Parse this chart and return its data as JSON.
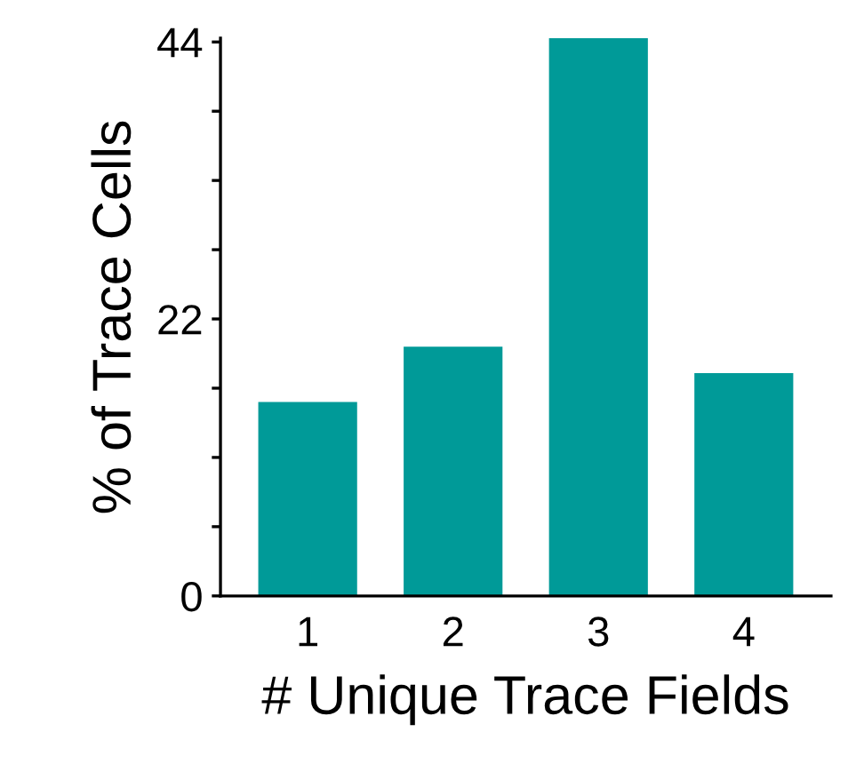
{
  "chart_data": {
    "type": "bar",
    "xlabel": "# Unique Trace Fields",
    "ylabel": "% of Trace Cells",
    "categories": [
      "1",
      "2",
      "3",
      "4"
    ],
    "values": [
      15.4,
      19.8,
      44.3,
      17.7
    ],
    "color": "#009a98",
    "ylim": [
      0,
      44.3
    ],
    "yticks": [
      0,
      {
        "value": 5.5,
        "label": null
      },
      {
        "value": 11,
        "label": null
      },
      {
        "value": 16.5,
        "label": null
      },
      22,
      {
        "value": 27.5,
        "label": null
      },
      {
        "value": 33,
        "label": null
      },
      {
        "value": 38.5,
        "label": null
      },
      44
    ],
    "grid": false
  }
}
